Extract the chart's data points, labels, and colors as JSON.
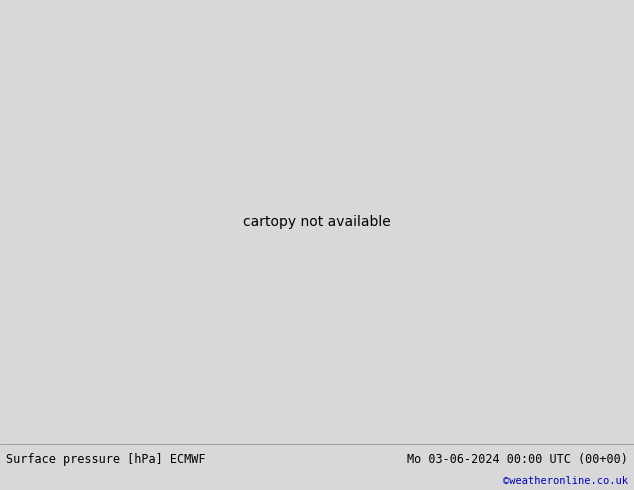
{
  "title_left": "Surface pressure [hPa] ECMWF",
  "title_right": "Mo 03-06-2024 00:00 UTC (00+00)",
  "credit": "©weatheronline.co.uk",
  "credit_color": "#0000bb",
  "bg_color": "#d8d8d8",
  "land_color": "#c8e8a0",
  "sea_color": "#d0d8e0",
  "mountain_color": "#aaaaaa",
  "bottom_bar_color": "#e8e8e8",
  "bottom_text_color": "#000000",
  "figsize": [
    6.34,
    4.9
  ],
  "dpi": 100,
  "map_extent": [
    -28,
    42,
    30,
    72
  ],
  "blue": "#0000ee",
  "red": "#dd0000",
  "black": "#000000"
}
